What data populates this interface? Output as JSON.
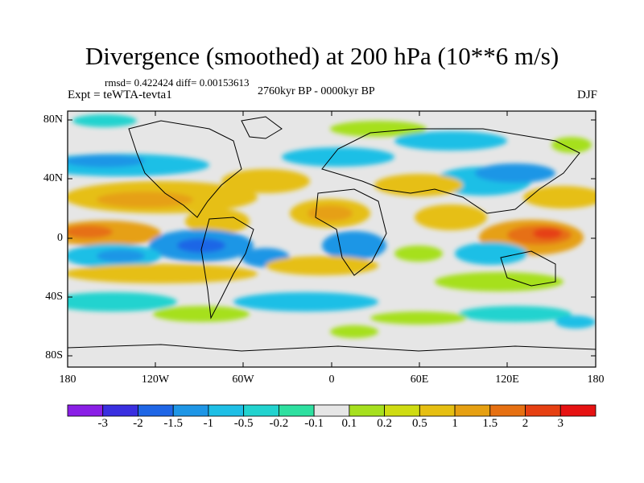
{
  "title": "Divergence (smoothed) at 200 hPa (10**6 m/s)",
  "stats": "rmsd= 0.422424 diff= 0.00153613",
  "experiment": "Expt = teWTA-tevta1",
  "period": "2760kyr BP - 0000kyr BP",
  "season": "DJF",
  "lat_labels": [
    "80N",
    "40N",
    "0",
    "40S",
    "80S"
  ],
  "lon_labels": [
    "180",
    "120W",
    "60W",
    "0",
    "60E",
    "120E",
    "180"
  ],
  "colorbar": {
    "labels": [
      "-3",
      "-2",
      "-1.5",
      "-1",
      "-0.5",
      "-0.2",
      "-0.1",
      "0.1",
      "0.2",
      "0.5",
      "1",
      "1.5",
      "2",
      "3"
    ],
    "colors": [
      "#8a1fe6",
      "#3a2fe0",
      "#1f66e6",
      "#1e96e6",
      "#1ebfe6",
      "#22d3cf",
      "#2ee0a0",
      "#e6e6e6",
      "#a6e01e",
      "#cfdc12",
      "#e6bf12",
      "#e6a012",
      "#e67012",
      "#e64012",
      "#e61212"
    ]
  }
}
